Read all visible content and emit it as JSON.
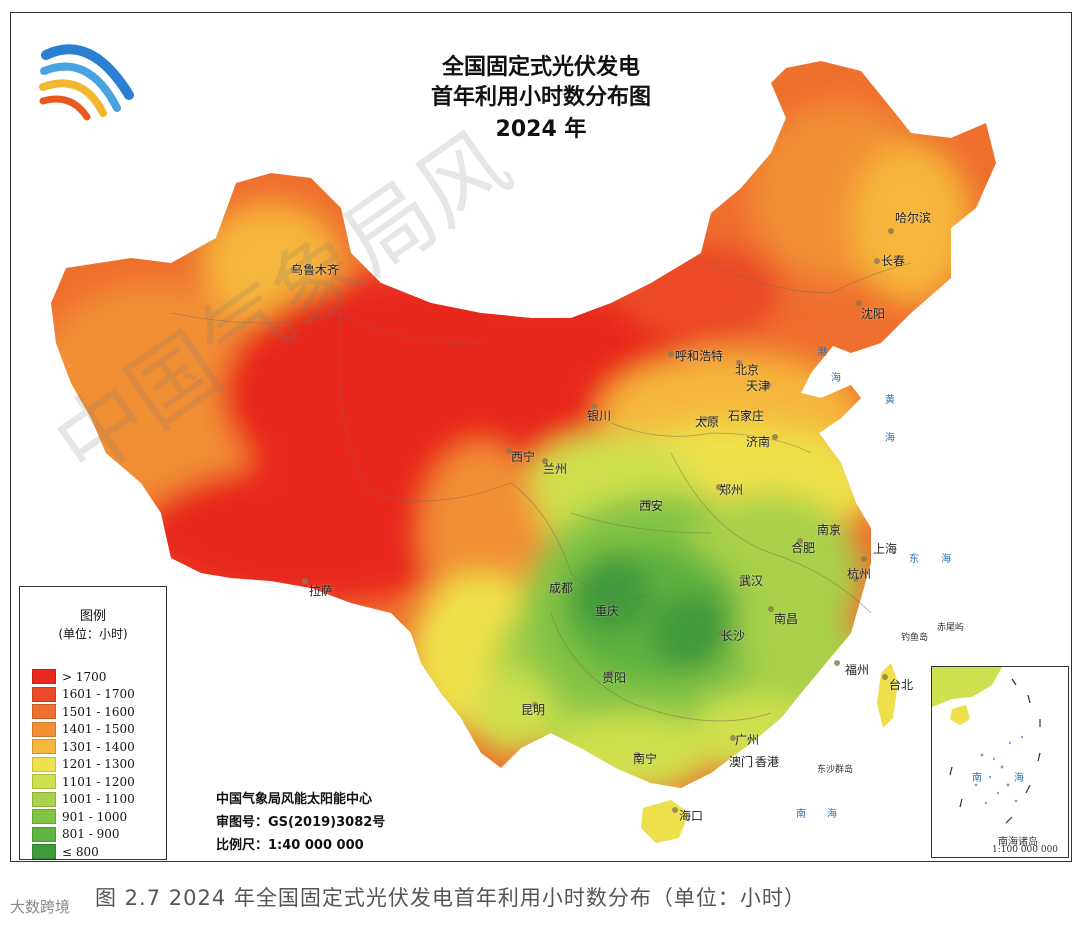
{
  "title": {
    "line1": "全国固定式光伏发电",
    "line2": "首年利用小时数分布图",
    "line3": "2024 年"
  },
  "background_watermark": "中国气象局风",
  "cities": [
    {
      "key": "wulumuqi",
      "name": "乌鲁木齐"
    },
    {
      "key": "huhehaote",
      "name": "呼和浩特"
    },
    {
      "key": "beijing",
      "name": "北京"
    },
    {
      "key": "tianjin",
      "name": "天津"
    },
    {
      "key": "haerbin",
      "name": "哈尔滨"
    },
    {
      "key": "changchun",
      "name": "长春"
    },
    {
      "key": "shenyang",
      "name": "沈阳"
    },
    {
      "key": "yinchuan",
      "name": "银川"
    },
    {
      "key": "taiyuan",
      "name": "太原"
    },
    {
      "key": "shijiazhuang",
      "name": "石家庄"
    },
    {
      "key": "jinan",
      "name": "济南"
    },
    {
      "key": "xining",
      "name": "西宁"
    },
    {
      "key": "lanzhou",
      "name": "兰州"
    },
    {
      "key": "zhengzhou",
      "name": "郑州"
    },
    {
      "key": "xian",
      "name": "西安"
    },
    {
      "key": "nanjing",
      "name": "南京"
    },
    {
      "key": "hefei",
      "name": "合肥"
    },
    {
      "key": "shanghai",
      "name": "上海"
    },
    {
      "key": "hangzhou",
      "name": "杭州"
    },
    {
      "key": "lasa",
      "name": "拉萨"
    },
    {
      "key": "chengdu",
      "name": "成都"
    },
    {
      "key": "chongqing",
      "name": "重庆"
    },
    {
      "key": "wuhan",
      "name": "武汉"
    },
    {
      "key": "nanchang",
      "name": "南昌"
    },
    {
      "key": "changsha",
      "name": "长沙"
    },
    {
      "key": "guiyang",
      "name": "贵阳"
    },
    {
      "key": "fuzhou",
      "name": "福州"
    },
    {
      "key": "taibei",
      "name": "台北"
    },
    {
      "key": "kunming",
      "name": "昆明"
    },
    {
      "key": "guangzhou",
      "name": "广州"
    },
    {
      "key": "nanning",
      "name": "南宁"
    },
    {
      "key": "aomen",
      "name": "澳门"
    },
    {
      "key": "xianggang",
      "name": "香港"
    },
    {
      "key": "haikou",
      "name": "海口"
    }
  ],
  "seas": {
    "bo": "渤",
    "bo2": "海",
    "huang": "黄",
    "huang2": "海",
    "dong": "东",
    "dong2": "海",
    "nan": "南",
    "nan2": "海",
    "inset_nan": "南",
    "inset_hai": "海"
  },
  "islands": {
    "diaoyu": "钓鱼岛",
    "chiwei": "赤尾屿",
    "dongsha": "东沙群岛"
  },
  "legend": {
    "title": "图例",
    "unit": "(单位：小时)",
    "items": [
      {
        "label": "> 1700",
        "color": "#e8281f"
      },
      {
        "label": "1601 - 1700",
        "color": "#ec4a26"
      },
      {
        "label": "1501 - 1600",
        "color": "#ef6f2e"
      },
      {
        "label": "1401 - 1500",
        "color": "#f28f35"
      },
      {
        "label": "1301 - 1400",
        "color": "#f5b63b"
      },
      {
        "label": "1201 - 1300",
        "color": "#eee04a"
      },
      {
        "label": "1101 - 1200",
        "color": "#cfe04e"
      },
      {
        "label": "1001 - 1100",
        "color": "#a9d14a"
      },
      {
        "label": "901 - 1000",
        "color": "#84c444"
      },
      {
        "label": "801 - 900",
        "color": "#5fb33f"
      },
      {
        "label": "≤ 800",
        "color": "#3f9a3a"
      }
    ]
  },
  "source": {
    "org": "中国气象局风能太阳能中心",
    "approval": "审图号：GS(2019)3082号",
    "scale": "比例尺：1:40 000 000"
  },
  "inset": {
    "label": "南海诸岛",
    "scale": "1:100 000 000"
  },
  "caption": "图 2.7    2024 年全国固定式光伏发电首年利用小时数分布（单位：小时）",
  "bottom_watermark": "大数跨境"
}
